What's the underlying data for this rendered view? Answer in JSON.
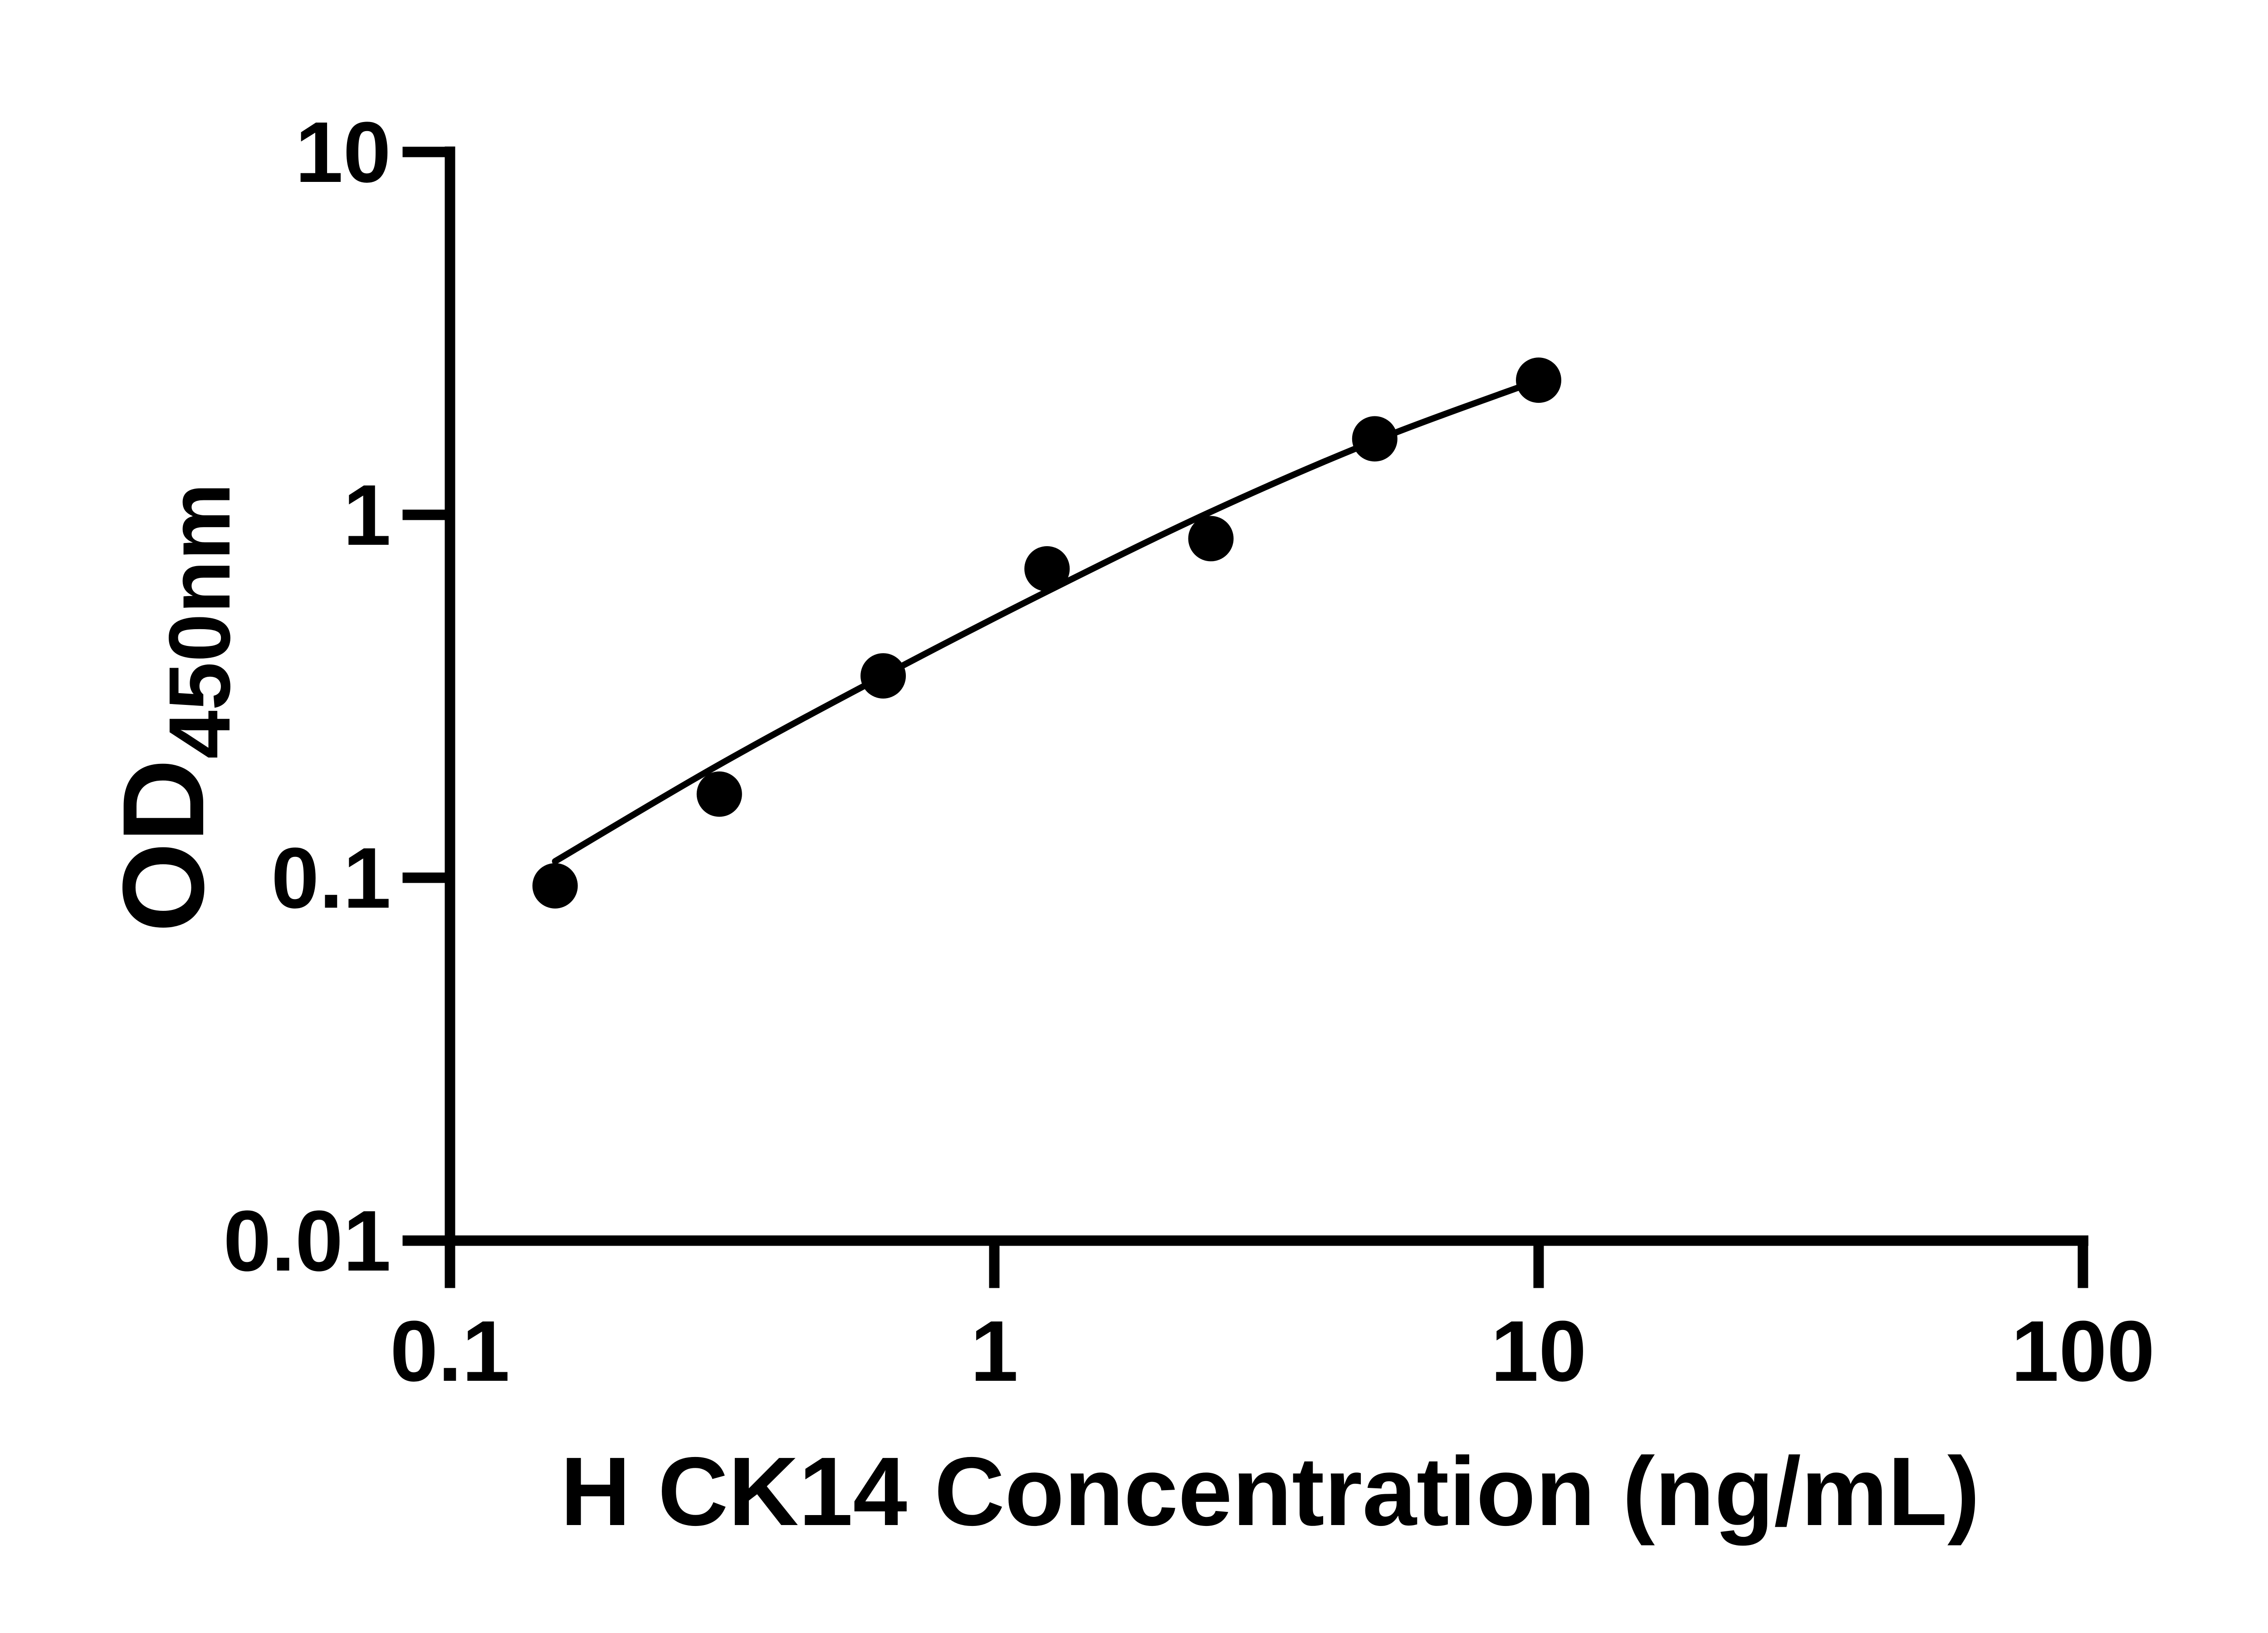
{
  "chart_data": {
    "type": "scatter",
    "title": "",
    "xlabel": "H CK14 Concentration (ng/mL)",
    "ylabel_main": "OD",
    "ylabel_sub": "450nm",
    "xscale": "log",
    "yscale": "log",
    "xlim": [
      0.1,
      100
    ],
    "ylim": [
      0.01,
      10
    ],
    "grid": false,
    "legend": "none",
    "x": [
      0.156,
      0.3125,
      0.625,
      1.25,
      2.5,
      5,
      10
    ],
    "y": [
      0.095,
      0.17,
      0.36,
      0.71,
      0.86,
      1.62,
      2.35
    ],
    "curve": {
      "x": [
        0.156,
        0.3125,
        0.625,
        1.25,
        2.5,
        5,
        10
      ],
      "y": [
        0.111,
        0.205,
        0.36,
        0.615,
        1.02,
        1.6,
        2.35
      ]
    },
    "xticks": [
      {
        "value": 0.1,
        "label": "0.1"
      },
      {
        "value": 1,
        "label": "1"
      },
      {
        "value": 10,
        "label": "10"
      },
      {
        "value": 100,
        "label": "100"
      }
    ],
    "yticks": [
      {
        "value": 10,
        "label": "10"
      },
      {
        "value": 1,
        "label": "1"
      },
      {
        "value": 0.1,
        "label": "0.1"
      },
      {
        "value": 0.01,
        "label": "0.01"
      }
    ],
    "marker_color": "#000000",
    "line_color": "#000000",
    "axis_color": "#000000",
    "background_color": "#ffffff"
  }
}
